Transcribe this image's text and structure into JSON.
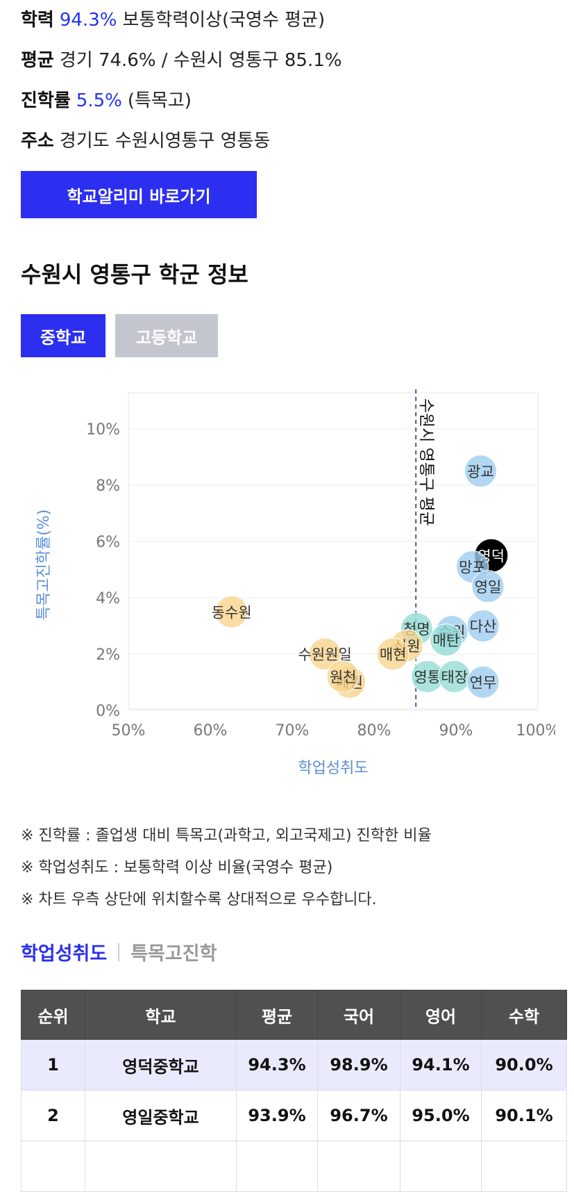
{
  "school_info": {
    "achievement_label": "학력",
    "achievement_value": "94.3%",
    "achievement_desc": "보통학력이상(국영수 평균)",
    "average_label": "평균",
    "average_text": "경기 74.6% / 수원시 영통구 85.1%",
    "entrance_label": "진학률",
    "entrance_value": "5.5%",
    "entrance_desc": "(특목고)",
    "address_label": "주소",
    "address_text": "경기도 수원시영통구 영통동",
    "alimi_button": "학교알리미 바로가기"
  },
  "district": {
    "title": "수원시 영통구 학군 정보",
    "tabs": [
      "중학교",
      "고등학교"
    ],
    "active_tab": 0
  },
  "chart_data": {
    "type": "scatter",
    "xlabel": "학업성취도",
    "ylabel": "특목고진학률(%)",
    "xlim": [
      50,
      100
    ],
    "ylim": [
      0,
      10
    ],
    "x_ticks": [
      "50%",
      "60%",
      "70%",
      "80%",
      "90%",
      "100%"
    ],
    "y_ticks": [
      "0%",
      "2%",
      "4%",
      "6%",
      "8%",
      "10%"
    ],
    "reference_line": {
      "x": 85.1,
      "label": "수원시 영통구 평균"
    },
    "colors": {
      "blue": "#9fcdf0",
      "teal": "#95dcd4",
      "yellow": "#f7d58f",
      "highlight": "#000000"
    },
    "points": [
      {
        "name": "광교",
        "x": 93.0,
        "y": 8.5,
        "group": "blue"
      },
      {
        "name": "영덕",
        "x": 94.3,
        "y": 5.5,
        "group": "highlight"
      },
      {
        "name": "망포",
        "x": 92.0,
        "y": 5.1,
        "group": "blue"
      },
      {
        "name": "영일",
        "x": 93.9,
        "y": 4.4,
        "group": "blue"
      },
      {
        "name": "다산",
        "x": 93.3,
        "y": 3.0,
        "group": "blue"
      },
      {
        "name": "수원",
        "x": 89.5,
        "y": 2.8,
        "group": "blue"
      },
      {
        "name": "매탄",
        "x": 88.8,
        "y": 2.5,
        "group": "teal"
      },
      {
        "name": "청명",
        "x": 85.2,
        "y": 2.9,
        "group": "teal"
      },
      {
        "name": "영통",
        "x": 86.5,
        "y": 1.2,
        "group": "teal"
      },
      {
        "name": "태장",
        "x": 89.8,
        "y": 1.2,
        "group": "teal"
      },
      {
        "name": "연무",
        "x": 93.3,
        "y": 1.0,
        "group": "blue"
      },
      {
        "name": "신원",
        "x": 84.0,
        "y": 2.3,
        "group": "yellow"
      },
      {
        "name": "매현",
        "x": 82.3,
        "y": 2.0,
        "group": "yellow"
      },
      {
        "name": "동수원",
        "x": 62.6,
        "y": 3.5,
        "group": "yellow"
      },
      {
        "name": "수원원일",
        "x": 74.0,
        "y": 2.0,
        "group": "yellow"
      },
      {
        "name": "매원",
        "x": 77.0,
        "y": 1.0,
        "group": "yellow"
      },
      {
        "name": "원천",
        "x": 76.2,
        "y": 1.2,
        "group": "yellow"
      }
    ]
  },
  "notes": [
    "※ 진학률 : 졸업생 대비 특목고(과학고, 외고국제고) 진학한 비율",
    "※ 학업성취도 : 보통학력 이상 비율(국영수 평균)",
    "※ 차트 우측 상단에 위치할수록 상대적으로 우수합니다."
  ],
  "ranking": {
    "tabs": [
      "학업성취도",
      "특목고진학"
    ],
    "headers": [
      "순위",
      "학교",
      "평균",
      "국어",
      "영어",
      "수학"
    ],
    "rows": [
      [
        "1",
        "영덕중학교",
        "94.3%",
        "98.9%",
        "94.1%",
        "90.0%"
      ],
      [
        "2",
        "영일중학교",
        "93.9%",
        "96.7%",
        "95.0%",
        "90.1%"
      ],
      [
        "",
        "",
        "",
        "",
        "",
        ""
      ]
    ]
  }
}
